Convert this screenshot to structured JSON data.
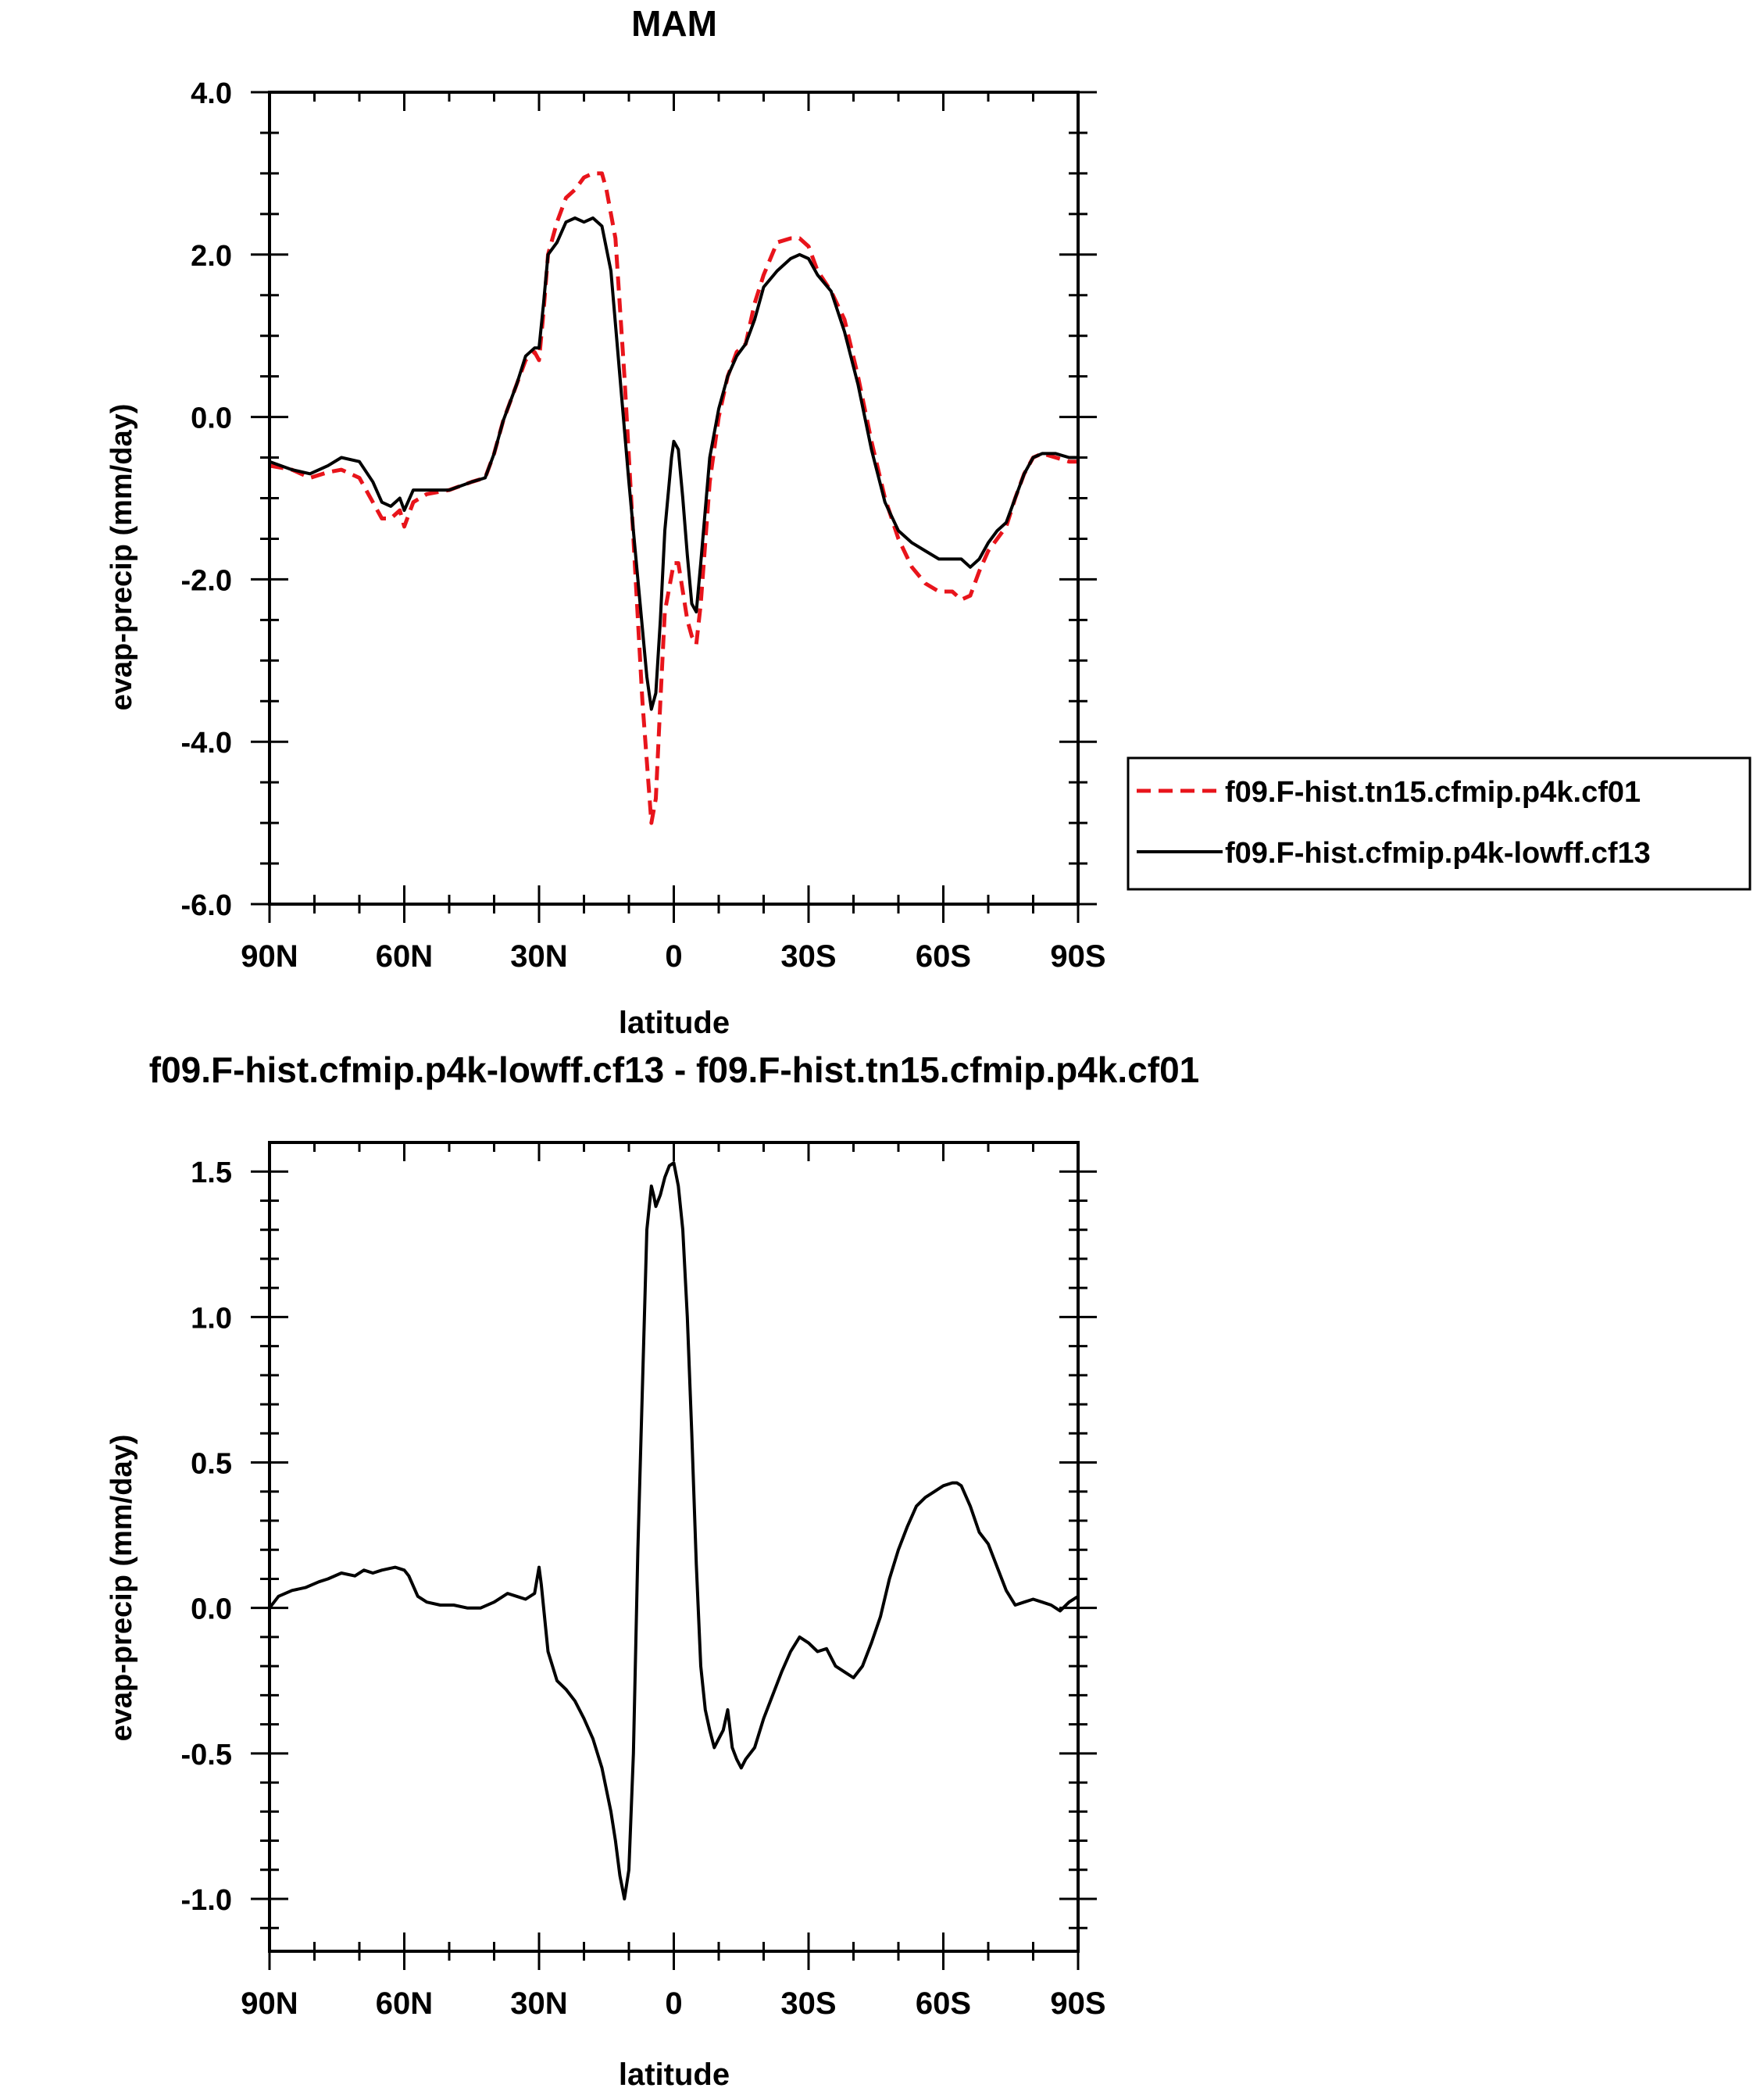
{
  "chart_data": [
    {
      "type": "line",
      "title": "MAM",
      "xlabel": "latitude",
      "ylabel": "evap-precip (mm/day)",
      "xlim": [
        90,
        -90
      ],
      "ylim": [
        -6.0,
        4.0
      ],
      "xtick_values": [
        90,
        60,
        30,
        0,
        -30,
        -60,
        -90
      ],
      "xtick_labels": [
        "90N",
        "60N",
        "30N",
        "0",
        "30S",
        "60S",
        "90S"
      ],
      "ytick_values": [
        -6,
        -4,
        -2,
        0,
        2,
        4
      ],
      "ytick_labels": [
        "-6.0",
        "-4.0",
        "-2.0",
        "0.0",
        "2.0",
        "4.0"
      ],
      "grid": false,
      "legend_position": "right",
      "series": [
        {
          "name": "f09.F-hist.tn15.cfmip.p4k.cf01",
          "color": "#e8141b",
          "style": "dashed",
          "x": [
            90,
            85,
            81,
            77,
            74,
            70,
            67,
            65,
            63,
            61,
            60,
            58,
            55,
            50,
            45,
            42,
            40,
            38,
            35,
            33,
            31,
            30,
            29,
            28,
            26,
            24,
            22,
            20,
            18,
            16,
            15,
            13,
            11,
            9,
            7,
            5,
            4,
            3,
            2,
            0,
            -1,
            -3,
            -4,
            -5,
            -6,
            -8,
            -10,
            -12,
            -14,
            -16,
            -18,
            -20,
            -23,
            -26,
            -28,
            -30,
            -32,
            -35,
            -38,
            -41,
            -44,
            -47,
            -50,
            -53,
            -56,
            -59,
            -62,
            -64,
            -66,
            -68,
            -70,
            -72,
            -74,
            -76,
            -78,
            -80,
            -82,
            -85,
            -88,
            -90
          ],
          "y": [
            -0.6,
            -0.65,
            -0.75,
            -0.68,
            -0.65,
            -0.75,
            -1.05,
            -1.25,
            -1.25,
            -1.15,
            -1.35,
            -1.05,
            -0.95,
            -0.9,
            -0.8,
            -0.75,
            -0.45,
            -0.05,
            0.4,
            0.7,
            0.8,
            0.7,
            1.3,
            2.0,
            2.4,
            2.7,
            2.8,
            2.95,
            3.0,
            3.0,
            2.8,
            2.2,
            0.5,
            -1.5,
            -3.5,
            -5.0,
            -4.7,
            -3.5,
            -2.4,
            -1.8,
            -1.8,
            -2.5,
            -2.7,
            -2.8,
            -2.3,
            -0.8,
            0.0,
            0.5,
            0.8,
            0.9,
            1.4,
            1.75,
            2.15,
            2.2,
            2.2,
            2.1,
            1.8,
            1.55,
            1.2,
            0.5,
            -0.3,
            -1.0,
            -1.5,
            -1.85,
            -2.05,
            -2.15,
            -2.15,
            -2.25,
            -2.2,
            -1.9,
            -1.65,
            -1.5,
            -1.35,
            -1.0,
            -0.7,
            -0.5,
            -0.45,
            -0.5,
            -0.55,
            -0.55
          ]
        },
        {
          "name": "f09.F-hist.cfmip.p4k-lowff.cf13",
          "color": "#000000",
          "style": "solid",
          "x": [
            90,
            85,
            81,
            77,
            74,
            70,
            67,
            65,
            63,
            61,
            60,
            58,
            55,
            50,
            45,
            42,
            40,
            38,
            35,
            33,
            31,
            30,
            29,
            28,
            26,
            24,
            22,
            20,
            18,
            16,
            14,
            12,
            10,
            8,
            6,
            5,
            4,
            3,
            2,
            0.5,
            0,
            -1,
            -2,
            -3,
            -4,
            -5,
            -6,
            -8,
            -10,
            -12,
            -14,
            -16,
            -18,
            -20,
            -23,
            -26,
            -28,
            -30,
            -32,
            -35,
            -38,
            -41,
            -44,
            -47,
            -50,
            -53,
            -56,
            -59,
            -62,
            -64,
            -66,
            -68,
            -70,
            -72,
            -74,
            -76,
            -78,
            -80,
            -82,
            -85,
            -88,
            -90
          ],
          "y": [
            -0.55,
            -0.65,
            -0.7,
            -0.6,
            -0.5,
            -0.55,
            -0.8,
            -1.05,
            -1.1,
            -1.0,
            -1.15,
            -0.9,
            -0.9,
            -0.9,
            -0.8,
            -0.75,
            -0.45,
            -0.05,
            0.4,
            0.75,
            0.85,
            0.85,
            1.4,
            2.0,
            2.15,
            2.4,
            2.45,
            2.4,
            2.45,
            2.35,
            1.8,
            0.5,
            -0.8,
            -2.0,
            -3.2,
            -3.6,
            -3.4,
            -2.5,
            -1.4,
            -0.5,
            -0.3,
            -0.4,
            -1.0,
            -1.7,
            -2.3,
            -2.4,
            -1.8,
            -0.5,
            0.1,
            0.5,
            0.75,
            0.9,
            1.2,
            1.6,
            1.8,
            1.95,
            2.0,
            1.95,
            1.75,
            1.55,
            1.05,
            0.4,
            -0.4,
            -1.05,
            -1.4,
            -1.55,
            -1.65,
            -1.75,
            -1.75,
            -1.75,
            -1.85,
            -1.75,
            -1.55,
            -1.4,
            -1.3,
            -1.0,
            -0.7,
            -0.5,
            -0.45,
            -0.45,
            -0.5,
            -0.5
          ]
        }
      ]
    },
    {
      "type": "line",
      "title": "f09.F-hist.cfmip.p4k-lowff.cf13 - f09.F-hist.tn15.cfmip.p4k.cf01",
      "xlabel": "latitude",
      "ylabel": "evap-precip (mm/day)",
      "xlim": [
        90,
        -90
      ],
      "ylim": [
        -1.18,
        1.6
      ],
      "xtick_values": [
        90,
        60,
        30,
        0,
        -30,
        -60,
        -90
      ],
      "xtick_labels": [
        "90N",
        "60N",
        "30N",
        "0",
        "30S",
        "60S",
        "90S"
      ],
      "ytick_values": [
        -1.0,
        -0.5,
        0.0,
        0.5,
        1.0,
        1.5
      ],
      "ytick_labels": [
        "-1.0",
        "-0.5",
        "0.0",
        "0.5",
        "1.0",
        "1.5"
      ],
      "grid": false,
      "series": [
        {
          "color": "#000000",
          "style": "solid",
          "x": [
            90,
            88,
            85,
            82,
            79,
            77,
            74,
            71,
            69,
            67,
            65,
            62,
            60,
            59,
            57,
            55,
            52,
            49,
            46,
            43,
            40,
            37,
            35,
            33,
            31,
            30,
            29.5,
            28,
            26,
            24,
            22,
            20,
            18,
            16,
            14,
            13,
            12,
            11,
            10,
            9,
            8,
            6,
            5,
            4.5,
            4,
            3,
            2,
            1,
            0,
            -1,
            -2,
            -3,
            -4,
            -5,
            -6,
            -7,
            -8,
            -9,
            -10,
            -11,
            -12,
            -13,
            -14,
            -15,
            -16,
            -18,
            -20,
            -22,
            -24,
            -26,
            -28,
            -30,
            -32,
            -34,
            -36,
            -38,
            -40,
            -42,
            -44,
            -46,
            -48,
            -50,
            -52,
            -54,
            -56,
            -58,
            -60,
            -62,
            -63,
            -64,
            -66,
            -68,
            -70,
            -72,
            -74,
            -76,
            -78,
            -80,
            -82,
            -84,
            -86,
            -88,
            -90
          ],
          "y": [
            0.0,
            0.04,
            0.06,
            0.07,
            0.09,
            0.1,
            0.12,
            0.11,
            0.13,
            0.12,
            0.13,
            0.14,
            0.13,
            0.11,
            0.04,
            0.02,
            0.01,
            0.01,
            0.0,
            0.0,
            0.02,
            0.05,
            0.04,
            0.03,
            0.05,
            0.14,
            0.08,
            -0.15,
            -0.25,
            -0.28,
            -0.32,
            -0.38,
            -0.45,
            -0.55,
            -0.7,
            -0.8,
            -0.92,
            -1.0,
            -0.9,
            -0.5,
            0.2,
            1.3,
            1.45,
            1.42,
            1.38,
            1.42,
            1.48,
            1.52,
            1.53,
            1.45,
            1.3,
            1.0,
            0.6,
            0.15,
            -0.2,
            -0.35,
            -0.42,
            -0.48,
            -0.45,
            -0.42,
            -0.35,
            -0.48,
            -0.52,
            -0.55,
            -0.52,
            -0.48,
            -0.38,
            -0.3,
            -0.22,
            -0.15,
            -0.1,
            -0.12,
            -0.15,
            -0.14,
            -0.2,
            -0.22,
            -0.24,
            -0.2,
            -0.12,
            -0.03,
            0.1,
            0.2,
            0.28,
            0.35,
            0.38,
            0.4,
            0.42,
            0.43,
            0.43,
            0.42,
            0.35,
            0.26,
            0.22,
            0.14,
            0.06,
            0.01,
            0.02,
            0.03,
            0.02,
            0.01,
            -0.01,
            0.02,
            0.04
          ]
        }
      ]
    }
  ]
}
